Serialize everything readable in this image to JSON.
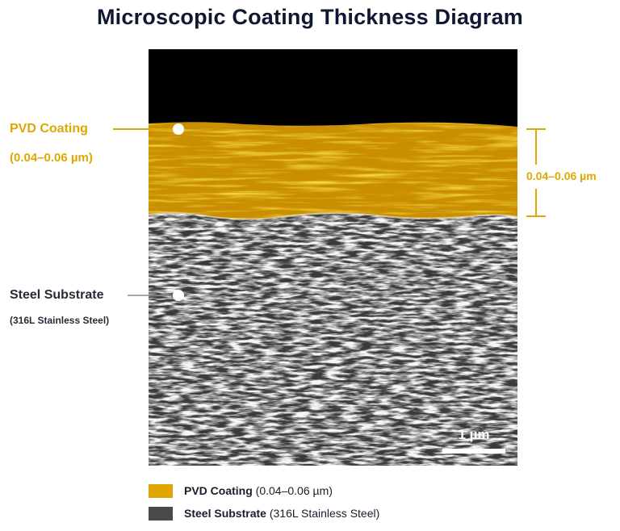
{
  "title": "Microscopic Coating Thickness Diagram",
  "layers": {
    "coating": {
      "name": "PVD Coating",
      "range": "(0.04–0.06 µm)",
      "color": "#e0a700"
    },
    "substrate": {
      "name": "Steel Substrate",
      "detail": "(316L Stainless Steel)",
      "color": "#4a4a4a"
    }
  },
  "dimension_label": "0.04–0.06 µm",
  "scale_bar": "1 µm",
  "legend": [
    {
      "name": "PVD Coating",
      "detail": "(0.04–0.06 µm)",
      "color": "#e0a700"
    },
    {
      "name": "Steel Substrate",
      "detail": "(316L Stainless Steel)",
      "color": "#4a4a4a"
    }
  ]
}
